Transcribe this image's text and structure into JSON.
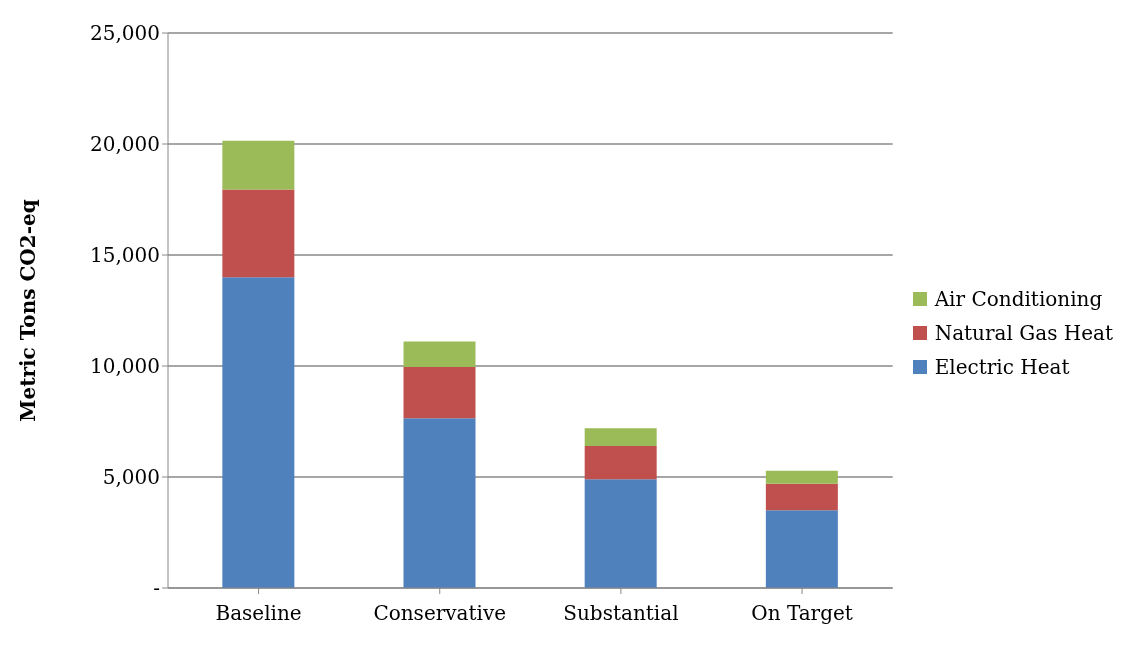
{
  "chart_data": {
    "type": "bar",
    "stacked": true,
    "ylabel": "Metric Tons CO2-eq",
    "categories": [
      "Baseline",
      "Conservative",
      "Substantial",
      "On Target"
    ],
    "series": [
      {
        "name": "Electric Heat",
        "color": "#4f81bd",
        "values": [
          14000,
          7650,
          4900,
          3500
        ]
      },
      {
        "name": "Natural Gas Heat",
        "color": "#c0504d",
        "values": [
          3950,
          2300,
          1500,
          1200
        ]
      },
      {
        "name": "Air Conditioning",
        "color": "#9bbb59",
        "values": [
          2200,
          1150,
          800,
          580
        ]
      }
    ],
    "ylim": [
      0,
      25000
    ],
    "yticks": [
      {
        "value": 0,
        "label": "-"
      },
      {
        "value": 5000,
        "label": "5,000"
      },
      {
        "value": 10000,
        "label": "10,000"
      },
      {
        "value": 15000,
        "label": "15,000"
      },
      {
        "value": 20000,
        "label": "20,000"
      },
      {
        "value": 25000,
        "label": "25,000"
      }
    ],
    "grid": "y",
    "legend": "right"
  }
}
